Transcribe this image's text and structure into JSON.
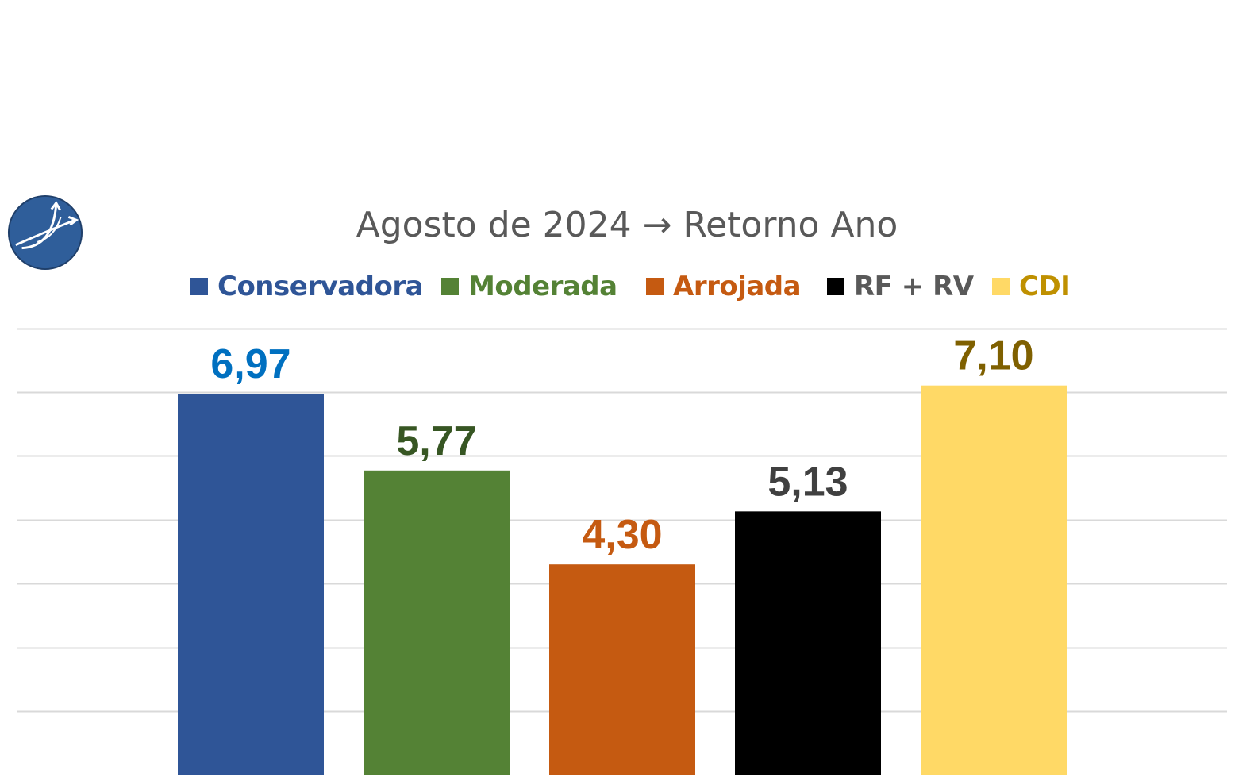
{
  "chart_data": {
    "type": "bar",
    "title": "Agosto de 2024 → Retorno Ano",
    "categories": [
      "Conservadora",
      "Moderada",
      "Arrojada",
      "RF + RV",
      "CDI"
    ],
    "values": [
      6.97,
      5.77,
      4.3,
      5.13,
      7.1
    ],
    "value_labels": [
      "6,97",
      "5,77",
      "4,30",
      "5,13",
      "7,10"
    ],
    "colors": [
      "#2F5597",
      "#548235",
      "#C55A11",
      "#000000",
      "#FFD966"
    ],
    "legend_text_colors": [
      "#2F5597",
      "#548235",
      "#C55A11",
      "#595959",
      "#BF9000"
    ],
    "value_label_colors": [
      "#0070C0",
      "#375623",
      "#C55A11",
      "#404040",
      "#7F6000"
    ],
    "legend_position": "top",
    "grid": true,
    "ylim": [
      1,
      7.99
    ]
  },
  "logo": {
    "icon": "growth-arrows-logo-icon",
    "color": "#2F5597"
  }
}
